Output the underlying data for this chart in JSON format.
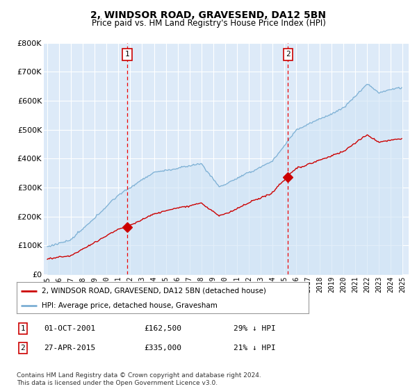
{
  "title": "2, WINDSOR ROAD, GRAVESEND, DA12 5BN",
  "subtitle": "Price paid vs. HM Land Registry's House Price Index (HPI)",
  "ylim": [
    0,
    800000
  ],
  "yticks": [
    0,
    100000,
    200000,
    300000,
    400000,
    500000,
    600000,
    700000,
    800000
  ],
  "ytick_labels": [
    "£0",
    "£100K",
    "£200K",
    "£300K",
    "£400K",
    "£500K",
    "£600K",
    "£700K",
    "£800K"
  ],
  "xlim_start": 1994.7,
  "xlim_end": 2025.5,
  "hpi_color": "#7bafd4",
  "hpi_fill_color": "#d0e4f5",
  "price_color": "#cc0000",
  "vline_color": "#ee0000",
  "bg_color": "#ddeaf8",
  "grid_color": "#ffffff",
  "sale1_x": 2001.75,
  "sale1_y": 162500,
  "sale2_x": 2015.32,
  "sale2_y": 335000,
  "legend_label1": "2, WINDSOR ROAD, GRAVESEND, DA12 5BN (detached house)",
  "legend_label2": "HPI: Average price, detached house, Gravesham",
  "annotation1_date": "01-OCT-2001",
  "annotation1_price": "£162,500",
  "annotation1_hpi": "29% ↓ HPI",
  "annotation2_date": "27-APR-2015",
  "annotation2_price": "£335,000",
  "annotation2_hpi": "21% ↓ HPI",
  "footnote": "Contains HM Land Registry data © Crown copyright and database right 2024.\nThis data is licensed under the Open Government Licence v3.0.",
  "xticks": [
    1995,
    1996,
    1997,
    1998,
    1999,
    2000,
    2001,
    2002,
    2003,
    2004,
    2005,
    2006,
    2007,
    2008,
    2009,
    2010,
    2011,
    2012,
    2013,
    2014,
    2015,
    2016,
    2017,
    2018,
    2019,
    2020,
    2021,
    2022,
    2023,
    2024,
    2025
  ]
}
